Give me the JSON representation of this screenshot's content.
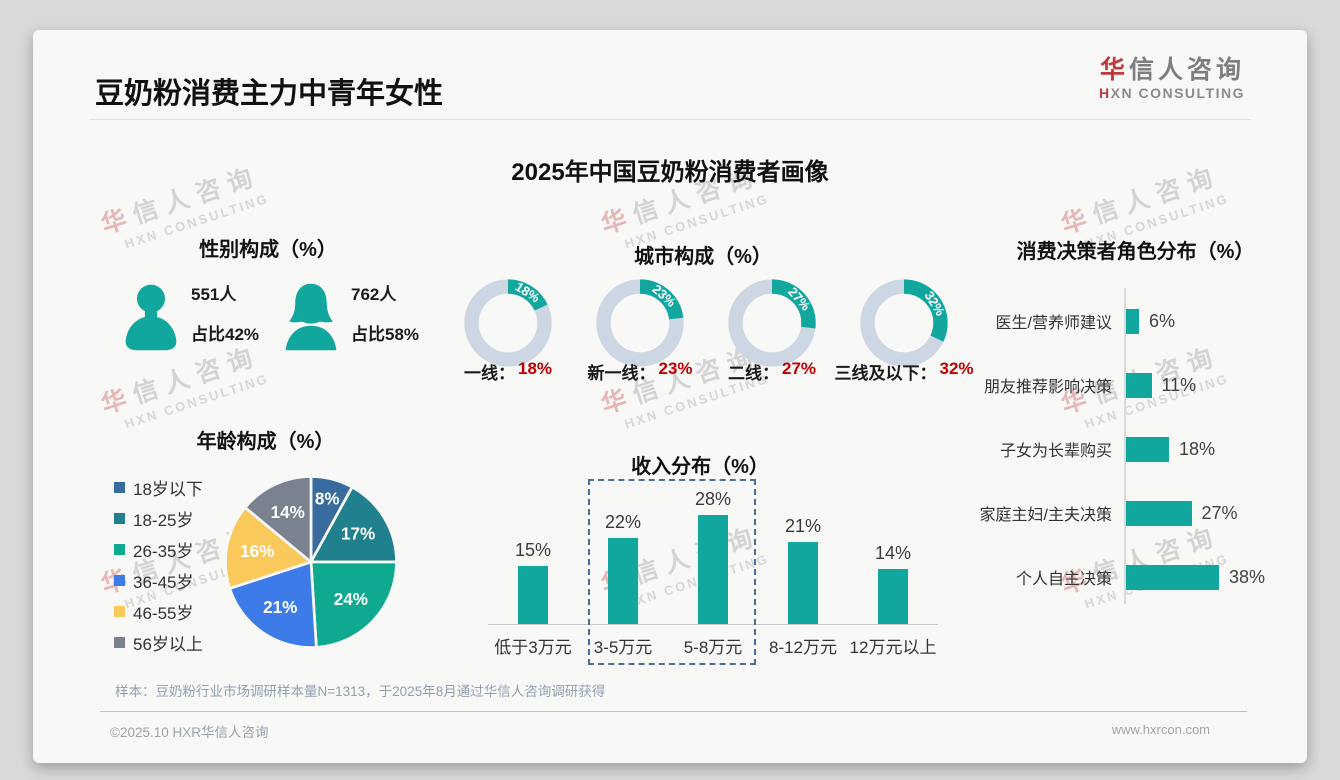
{
  "page": {
    "title": "豆奶粉消费主力中青年女性",
    "subtitle": "2025年中国豆奶粉消费者画像"
  },
  "logo": {
    "cn_first": "华",
    "cn_rest": "信人咨询",
    "en_first": "H",
    "en_rest": "XN CONSULTING"
  },
  "watermark": {
    "cn_first": "华",
    "cn_rest": "信人咨询",
    "en": "HXN CONSULTING"
  },
  "colors": {
    "teal": "#12A79E",
    "red": "#C00000",
    "donut_track": "#CDD7E4",
    "highlight_dash": "#4A6F9B"
  },
  "gender": {
    "title": "性别构成（%）",
    "male": {
      "count": "551人",
      "share": "占比42%"
    },
    "female": {
      "count": "762人",
      "share": "占比58%"
    }
  },
  "city": {
    "title": "城市构成（%）",
    "items": [
      {
        "label": "一线：",
        "value": 18,
        "value_label": "18%"
      },
      {
        "label": "新一线：",
        "value": 23,
        "value_label": "23%"
      },
      {
        "label": "二线：",
        "value": 27,
        "value_label": "27%"
      },
      {
        "label": "三线及以下：",
        "value": 32,
        "value_label": "32%"
      }
    ]
  },
  "decision": {
    "title": "消费决策者角色分布（%）",
    "items": [
      {
        "label": "医生/营养师建议",
        "value": 6,
        "value_label": "6%"
      },
      {
        "label": "朋友推荐影响决策",
        "value": 11,
        "value_label": "11%"
      },
      {
        "label": "子女为长辈购买",
        "value": 18,
        "value_label": "18%"
      },
      {
        "label": "家庭主妇/主夫决策",
        "value": 27,
        "value_label": "27%"
      },
      {
        "label": "个人自主决策",
        "value": 38,
        "value_label": "38%"
      }
    ]
  },
  "age": {
    "title": "年龄构成（%）",
    "items": [
      {
        "label": "18岁以下",
        "value": 8,
        "value_label": "8%",
        "color": "#3A6B9E"
      },
      {
        "label": "18-25岁",
        "value": 17,
        "value_label": "17%",
        "color": "#21808E"
      },
      {
        "label": "26-35岁",
        "value": 24,
        "value_label": "24%",
        "color": "#0FA98F"
      },
      {
        "label": "36-45岁",
        "value": 21,
        "value_label": "21%",
        "color": "#3D7CE8"
      },
      {
        "label": "46-55岁",
        "value": 16,
        "value_label": "16%",
        "color": "#FAC95C"
      },
      {
        "label": "56岁以上",
        "value": 14,
        "value_label": "14%",
        "color": "#79828E"
      }
    ]
  },
  "income": {
    "title": "收入分布（%）",
    "items": [
      {
        "label": "低于3万元",
        "value": 15,
        "value_label": "15%"
      },
      {
        "label": "3-5万元",
        "value": 22,
        "value_label": "22%"
      },
      {
        "label": "5-8万元",
        "value": 28,
        "value_label": "28%"
      },
      {
        "label": "8-12万元",
        "value": 21,
        "value_label": "21%"
      },
      {
        "label": "12万元以上",
        "value": 14,
        "value_label": "14%"
      }
    ],
    "highlight_range": [
      "3-5万元",
      "5-8万元"
    ]
  },
  "footnote": "样本：豆奶粉行业市场调研样本量N=1313，于2025年8月通过华信人咨询调研获得",
  "footer": {
    "left": "©2025.10 HXR华信人咨询",
    "right": "www.hxrcon.com"
  },
  "chart_data": [
    {
      "type": "table",
      "title": "性别构成（%）",
      "columns": [
        "性别",
        "人数",
        "占比"
      ],
      "rows": [
        [
          "男",
          "551人",
          "42%"
        ],
        [
          "女",
          "762人",
          "58%"
        ]
      ]
    },
    {
      "type": "pie",
      "subtype": "donut-multiples",
      "title": "城市构成（%）",
      "categories": [
        "一线",
        "新一线",
        "二线",
        "三线及以下"
      ],
      "values": [
        18,
        23,
        27,
        32
      ]
    },
    {
      "type": "bar",
      "subtype": "horizontal",
      "title": "消费决策者角色分布（%）",
      "categories": [
        "医生/营养师建议",
        "朋友推荐影响决策",
        "子女为长辈购买",
        "家庭主妇/主夫决策",
        "个人自主决策"
      ],
      "values": [
        6,
        11,
        18,
        27,
        38
      ],
      "xlim": [
        0,
        40
      ],
      "legend_position": "none"
    },
    {
      "type": "pie",
      "title": "年龄构成（%）",
      "categories": [
        "18岁以下",
        "18-25岁",
        "26-35岁",
        "36-45岁",
        "46-55岁",
        "56岁以上"
      ],
      "values": [
        8,
        17,
        24,
        21,
        16,
        14
      ],
      "legend_position": "left"
    },
    {
      "type": "bar",
      "title": "收入分布（%）",
      "categories": [
        "低于3万元",
        "3-5万元",
        "5-8万元",
        "8-12万元",
        "12万元以上"
      ],
      "values": [
        15,
        22,
        28,
        21,
        14
      ],
      "ylim": [
        0,
        30
      ],
      "annotation": "3-5万元与5-8万元两档以蓝色虚线框突出"
    }
  ]
}
